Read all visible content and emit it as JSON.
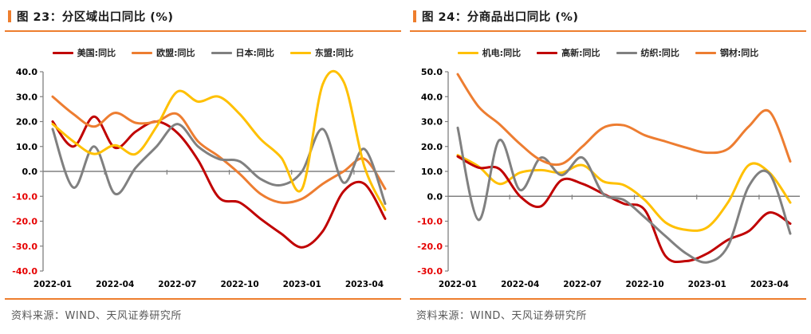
{
  "page": {
    "background": "#ffffff",
    "accent_color": "#ee7e2e"
  },
  "panels": [
    {
      "title": "图 23：分区域出口同比 (%)",
      "source": "资料来源：WIND、天风证券研究所"
    },
    {
      "title": "图 24：分商品出口同比 (%)",
      "source": "资料来源：WIND、天风证券研究所"
    }
  ],
  "chart_data": [
    {
      "type": "line",
      "title": "图 23：分区域出口同比 (%)",
      "x": [
        "2022-01",
        "2022-02",
        "2022-03",
        "2022-04",
        "2022-05",
        "2022-06",
        "2022-07",
        "2022-08",
        "2022-09",
        "2022-10",
        "2022-11",
        "2022-12",
        "2023-01",
        "2023-02",
        "2023-03",
        "2023-04",
        "2023-05"
      ],
      "x_tick_labels": [
        "2022-01",
        "2022-04",
        "2022-07",
        "2022-10",
        "2023-01",
        "2023-04"
      ],
      "x_tick_months": [
        0,
        3,
        6,
        9,
        12,
        15
      ],
      "ylim": [
        -40,
        40
      ],
      "ytick_step": 10,
      "grid": false,
      "legend_position": "top",
      "axis_color": "#808080",
      "negative_tick_color": "#e60000",
      "series": [
        {
          "name": "美国:同比",
          "color": "#c00000",
          "values": [
            20,
            10,
            22,
            9.5,
            16,
            20,
            15.5,
            4.5,
            -10.5,
            -12.5,
            -19,
            -25,
            -30.5,
            -24,
            -8,
            -5,
            -19
          ]
        },
        {
          "name": "欧盟:同比",
          "color": "#ed7d31",
          "values": [
            30,
            23,
            18,
            23.5,
            19.5,
            20,
            23,
            12,
            6,
            -1,
            -9,
            -12.5,
            -11,
            -5,
            0,
            5,
            -7
          ]
        },
        {
          "name": "日本:同比",
          "color": "#808080",
          "values": [
            17,
            -6.5,
            10,
            -9,
            1.5,
            10,
            19,
            10,
            5,
            4,
            -3,
            -5.5,
            0,
            17,
            -4.5,
            9,
            -13
          ]
        },
        {
          "name": "东盟:同比",
          "color": "#ffc000",
          "values": [
            19,
            12,
            7,
            10.5,
            7,
            18,
            32,
            28,
            30,
            23,
            13,
            5.5,
            -7,
            35,
            36,
            2,
            -15.5
          ]
        }
      ]
    },
    {
      "type": "line",
      "title": "图 24：分商品出口同比 (%)",
      "x": [
        "2022-01",
        "2022-02",
        "2022-03",
        "2022-04",
        "2022-05",
        "2022-06",
        "2022-07",
        "2022-08",
        "2022-09",
        "2022-10",
        "2022-11",
        "2022-12",
        "2023-01",
        "2023-02",
        "2023-03",
        "2023-04",
        "2023-05"
      ],
      "x_tick_labels": [
        "2022-01",
        "2022-04",
        "2022-07",
        "2022-10",
        "2023-01",
        "2023-04"
      ],
      "x_tick_months": [
        0,
        3,
        6,
        9,
        12,
        15
      ],
      "ylim": [
        -30,
        50
      ],
      "ytick_step": 10,
      "grid": false,
      "legend_position": "top",
      "axis_color": "#808080",
      "negative_tick_color": "#e60000",
      "series": [
        {
          "name": "机电:同比",
          "color": "#ffc000",
          "values": [
            16.5,
            12,
            5,
            9.5,
            10.5,
            9.5,
            12.5,
            6,
            4.5,
            -1.5,
            -10.5,
            -13.5,
            -12.5,
            -2.5,
            12.5,
            9.5,
            -2.5
          ]
        },
        {
          "name": "高新:同比",
          "color": "#c00000",
          "values": [
            16,
            11.5,
            11,
            0,
            -4,
            6.5,
            5,
            1,
            -3,
            -5.5,
            -24,
            -26,
            -23,
            -17.5,
            -14,
            -6.5,
            -11
          ]
        },
        {
          "name": "纺织:同比",
          "color": "#808080",
          "values": [
            27.5,
            -9.5,
            22.5,
            2.5,
            15.5,
            8.5,
            15.5,
            1,
            -1.5,
            -8.5,
            -16,
            -23,
            -26.5,
            -20,
            4,
            9,
            -15
          ]
        },
        {
          "name": "钢材:同比",
          "color": "#ed7d31",
          "values": [
            49,
            36,
            29,
            21,
            14.5,
            13,
            20,
            27.5,
            28.5,
            24.5,
            22,
            19.5,
            17.5,
            19,
            28,
            34,
            14
          ]
        }
      ]
    }
  ]
}
